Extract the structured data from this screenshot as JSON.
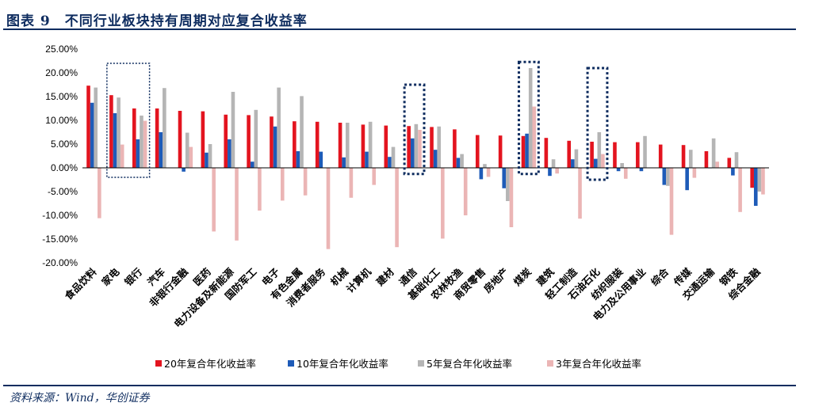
{
  "figure": {
    "title": "图表 9　不同行业板块持有周期对应复合收益率",
    "source": "资料来源：Wind，华创证券"
  },
  "chart_data": {
    "type": "bar",
    "ylim": [
      -20,
      25
    ],
    "yticks": [
      "25.00%",
      "20.00%",
      "15.00%",
      "10.00%",
      "5.00%",
      "0.00%",
      "-5.00%",
      "-10.00%",
      "-15.00%",
      "-20.00%"
    ],
    "ytick_values": [
      25,
      20,
      15,
      10,
      5,
      0,
      -5,
      -10,
      -15,
      -20
    ],
    "legend_position": "bottom",
    "grid": false,
    "categories": [
      "食品饮料",
      "家电",
      "银行",
      "汽车",
      "非银行金融",
      "医药",
      "电力设备及新能源",
      "国防军工",
      "电子",
      "有色金属",
      "消费者服务",
      "机械",
      "计算机",
      "建材",
      "通信",
      "基础化工",
      "农林牧渔",
      "商贸零售",
      "房地产",
      "煤炭",
      "建筑",
      "轻工制造",
      "石油石化",
      "纺织服装",
      "电力及公用事业",
      "综合",
      "传媒",
      "交通运输",
      "钢铁",
      "综合金融"
    ],
    "series": [
      {
        "name": "20年复合年化收益率",
        "color": "#e3141f",
        "values": [
          17.3,
          15.3,
          12.5,
          12.5,
          12.0,
          11.9,
          11.2,
          11.1,
          10.8,
          9.8,
          9.7,
          9.5,
          9.1,
          8.9,
          8.8,
          8.6,
          8.1,
          6.9,
          6.8,
          6.7,
          6.3,
          5.7,
          5.5,
          5.4,
          5.4,
          4.9,
          4.8,
          3.5,
          2.1,
          -4.2
        ]
      },
      {
        "name": "10年复合年化收益率",
        "color": "#1e5bb8",
        "values": [
          13.7,
          11.5,
          6.0,
          7.5,
          -0.8,
          3.2,
          6.0,
          1.3,
          8.7,
          3.5,
          3.4,
          2.2,
          3.4,
          2.3,
          6.2,
          3.8,
          2.1,
          -2.4,
          -4.3,
          7.2,
          -1.7,
          1.8,
          1.9,
          -0.7,
          -0.7,
          -3.6,
          -4.7,
          -0.1,
          -1.6,
          -8.0
        ]
      },
      {
        "name": "5年复合年化收益率",
        "color": "#b5b5b5",
        "values": [
          16.9,
          14.8,
          11.0,
          16.8,
          7.4,
          5.0,
          16.0,
          12.2,
          16.9,
          15.1,
          0.0,
          9.5,
          9.7,
          4.4,
          9.2,
          8.7,
          2.9,
          0.8,
          -7.0,
          21.0,
          1.8,
          3.9,
          7.5,
          1.0,
          6.7,
          -3.8,
          3.8,
          6.2,
          3.3,
          -5.0
        ]
      },
      {
        "name": "3年复合年化收益率",
        "color": "#ebb5b5",
        "values": [
          -10.6,
          4.9,
          9.9,
          0.0,
          4.4,
          -13.4,
          -15.3,
          -9.0,
          -6.9,
          -5.8,
          -17.1,
          -6.3,
          -3.6,
          -16.7,
          8.0,
          -14.9,
          -10.0,
          -1.9,
          -12.5,
          12.9,
          -1.2,
          -10.7,
          2.9,
          -2.3,
          0.0,
          -14.1,
          -2.1,
          1.3,
          -9.3,
          -5.6
        ]
      }
    ]
  }
}
